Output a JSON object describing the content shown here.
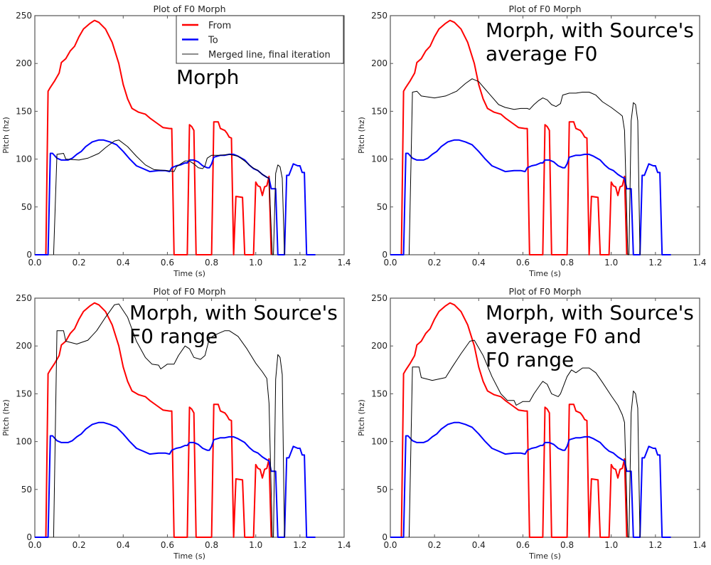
{
  "chart_data": [
    {
      "type": "line",
      "title": "Plot of F0 Morph",
      "xlabel": "Time (s)",
      "ylabel": "Pitch (hz)",
      "xlim": [
        0.0,
        1.4
      ],
      "ylim": [
        0,
        250
      ],
      "xticks": [
        "0.0",
        "0.2",
        "0.4",
        "0.6",
        "0.8",
        "1.0",
        "1.2",
        "1.4"
      ],
      "yticks": [
        "0",
        "50",
        "100",
        "150",
        "200",
        "250"
      ],
      "annotation": [
        "Morph"
      ],
      "legend": {
        "position": "top-right",
        "entries": [
          "From",
          "To",
          "Merged line, final iteration"
        ]
      },
      "merged_key": "merged_morph"
    },
    {
      "type": "line",
      "title": "Plot of F0 Morph",
      "xlabel": "Time (s)",
      "ylabel": "Pitch (hz)",
      "xlim": [
        0.0,
        1.4
      ],
      "ylim": [
        0,
        250
      ],
      "xticks": [
        "0.0",
        "0.2",
        "0.4",
        "0.6",
        "0.8",
        "1.0",
        "1.2",
        "1.4"
      ],
      "yticks": [
        "0",
        "50",
        "100",
        "150",
        "200",
        "250"
      ],
      "annotation": [
        "Morph, with Source's",
        "average F0"
      ],
      "legend": null,
      "merged_key": "merged_avg"
    },
    {
      "type": "line",
      "title": "Plot of F0 Morph",
      "xlabel": "Time (s)",
      "ylabel": "Pitch (hz)",
      "xlim": [
        0.0,
        1.4
      ],
      "ylim": [
        0,
        250
      ],
      "xticks": [
        "0.0",
        "0.2",
        "0.4",
        "0.6",
        "0.8",
        "1.0",
        "1.2",
        "1.4"
      ],
      "yticks": [
        "0",
        "50",
        "100",
        "150",
        "200",
        "250"
      ],
      "annotation": [
        "Morph, with Source's",
        "F0 range"
      ],
      "legend": null,
      "merged_key": "merged_range"
    },
    {
      "type": "line",
      "title": "Plot of F0 Morph",
      "xlabel": "Time (s)",
      "ylabel": "Pitch (hz)",
      "xlim": [
        0.0,
        1.4
      ],
      "ylim": [
        0,
        250
      ],
      "xticks": [
        "0.0",
        "0.2",
        "0.4",
        "0.6",
        "0.8",
        "1.0",
        "1.2",
        "1.4"
      ],
      "yticks": [
        "0",
        "50",
        "100",
        "150",
        "200",
        "250"
      ],
      "annotation": [
        "Morph, with Source's",
        "average F0 and",
        "F0 range"
      ],
      "legend": null,
      "merged_key": "merged_avg_range"
    }
  ],
  "series": {
    "from": {
      "name": "From",
      "color": "#ff0000",
      "points": [
        [
          0,
          0
        ],
        [
          0.05,
          0
        ],
        [
          0.06,
          171
        ],
        [
          0.07,
          175
        ],
        [
          0.09,
          182
        ],
        [
          0.11,
          190
        ],
        [
          0.12,
          201
        ],
        [
          0.14,
          205
        ],
        [
          0.16,
          213
        ],
        [
          0.18,
          218
        ],
        [
          0.2,
          228
        ],
        [
          0.22,
          236
        ],
        [
          0.25,
          242
        ],
        [
          0.27,
          245
        ],
        [
          0.29,
          243
        ],
        [
          0.32,
          236
        ],
        [
          0.35,
          222
        ],
        [
          0.38,
          200
        ],
        [
          0.4,
          178
        ],
        [
          0.42,
          163
        ],
        [
          0.44,
          153
        ],
        [
          0.47,
          149
        ],
        [
          0.5,
          147
        ],
        [
          0.52,
          143
        ],
        [
          0.55,
          138
        ],
        [
          0.58,
          133
        ],
        [
          0.61,
          132
        ],
        [
          0.62,
          132
        ],
        [
          0.63,
          0
        ],
        [
          0.69,
          0
        ],
        [
          0.7,
          136
        ],
        [
          0.71,
          134
        ],
        [
          0.72,
          130
        ],
        [
          0.73,
          0
        ],
        [
          0.8,
          0
        ],
        [
          0.81,
          139
        ],
        [
          0.83,
          139
        ],
        [
          0.84,
          132
        ],
        [
          0.86,
          130
        ],
        [
          0.87,
          127
        ],
        [
          0.88,
          123
        ],
        [
          0.89,
          122
        ],
        [
          0.9,
          0
        ],
        [
          0.91,
          61
        ],
        [
          0.94,
          60
        ],
        [
          0.95,
          0
        ],
        [
          0.99,
          0
        ],
        [
          1.0,
          76
        ],
        [
          1.01,
          72
        ],
        [
          1.02,
          71
        ],
        [
          1.03,
          62
        ],
        [
          1.04,
          71
        ],
        [
          1.05,
          72
        ],
        [
          1.06,
          82
        ],
        [
          1.07,
          0
        ]
      ]
    },
    "to": {
      "name": "To",
      "color": "#0000ff",
      "points": [
        [
          0,
          0
        ],
        [
          0.06,
          0
        ],
        [
          0.07,
          106
        ],
        [
          0.08,
          106
        ],
        [
          0.1,
          101
        ],
        [
          0.12,
          99
        ],
        [
          0.15,
          99
        ],
        [
          0.17,
          101
        ],
        [
          0.19,
          105
        ],
        [
          0.21,
          108
        ],
        [
          0.23,
          113
        ],
        [
          0.26,
          118
        ],
        [
          0.29,
          120
        ],
        [
          0.31,
          120
        ],
        [
          0.34,
          118
        ],
        [
          0.37,
          115
        ],
        [
          0.4,
          108
        ],
        [
          0.43,
          100
        ],
        [
          0.46,
          93
        ],
        [
          0.49,
          90
        ],
        [
          0.52,
          87
        ],
        [
          0.56,
          88
        ],
        [
          0.59,
          88
        ],
        [
          0.61,
          87
        ],
        [
          0.62,
          91
        ],
        [
          0.64,
          93
        ],
        [
          0.66,
          94
        ],
        [
          0.68,
          96
        ],
        [
          0.69,
          96
        ],
        [
          0.7,
          99
        ],
        [
          0.72,
          99
        ],
        [
          0.74,
          97
        ],
        [
          0.76,
          93
        ],
        [
          0.78,
          91
        ],
        [
          0.79,
          91
        ],
        [
          0.8,
          95
        ],
        [
          0.81,
          102
        ],
        [
          0.84,
          104
        ],
        [
          0.86,
          104
        ],
        [
          0.88,
          105
        ],
        [
          0.9,
          105
        ],
        [
          0.92,
          103
        ],
        [
          0.95,
          99
        ],
        [
          0.97,
          94
        ],
        [
          0.99,
          90
        ],
        [
          1.01,
          88
        ],
        [
          1.03,
          84
        ],
        [
          1.05,
          81
        ],
        [
          1.06,
          80
        ],
        [
          1.07,
          69
        ],
        [
          1.09,
          69
        ],
        [
          1.1,
          0
        ],
        [
          1.13,
          0
        ],
        [
          1.14,
          83
        ],
        [
          1.15,
          83
        ],
        [
          1.16,
          89
        ],
        [
          1.17,
          95
        ],
        [
          1.19,
          93
        ],
        [
          1.2,
          93
        ],
        [
          1.21,
          86
        ],
        [
          1.22,
          86
        ],
        [
          1.23,
          0
        ],
        [
          1.27,
          0
        ]
      ]
    },
    "merged_morph": {
      "name": "Merged line, final iteration",
      "color": "#000000",
      "points": [
        [
          0.085,
          0
        ],
        [
          0.1,
          105
        ],
        [
          0.13,
          106
        ],
        [
          0.14,
          100
        ],
        [
          0.2,
          99
        ],
        [
          0.24,
          101
        ],
        [
          0.29,
          106
        ],
        [
          0.32,
          112
        ],
        [
          0.36,
          119
        ],
        [
          0.38,
          120
        ],
        [
          0.42,
          113
        ],
        [
          0.46,
          103
        ],
        [
          0.5,
          94
        ],
        [
          0.54,
          89
        ],
        [
          0.6,
          88
        ],
        [
          0.63,
          87
        ],
        [
          0.64,
          92
        ],
        [
          0.66,
          95
        ],
        [
          0.68,
          98
        ],
        [
          0.7,
          98
        ],
        [
          0.72,
          95
        ],
        [
          0.74,
          91
        ],
        [
          0.76,
          90
        ],
        [
          0.77,
          93
        ],
        [
          0.78,
          101
        ],
        [
          0.8,
          104
        ],
        [
          0.84,
          104
        ],
        [
          0.88,
          105
        ],
        [
          0.92,
          103
        ],
        [
          0.95,
          98
        ],
        [
          0.98,
          92
        ],
        [
          1.01,
          88
        ],
        [
          1.03,
          84
        ],
        [
          1.05,
          81
        ],
        [
          1.06,
          80
        ],
        [
          1.075,
          0
        ],
        [
          1.08,
          0
        ],
        [
          1.09,
          85
        ],
        [
          1.1,
          94
        ],
        [
          1.11,
          92
        ],
        [
          1.12,
          80
        ],
        [
          1.13,
          0
        ]
      ]
    },
    "merged_avg": {
      "name": "Merged line, final iteration",
      "color": "#000000",
      "points": [
        [
          0.085,
          0
        ],
        [
          0.1,
          170
        ],
        [
          0.12,
          171
        ],
        [
          0.14,
          166
        ],
        [
          0.2,
          164
        ],
        [
          0.25,
          166
        ],
        [
          0.3,
          171
        ],
        [
          0.34,
          179
        ],
        [
          0.37,
          184
        ],
        [
          0.4,
          181
        ],
        [
          0.43,
          173
        ],
        [
          0.46,
          165
        ],
        [
          0.49,
          157
        ],
        [
          0.52,
          154
        ],
        [
          0.56,
          152
        ],
        [
          0.59,
          153
        ],
        [
          0.62,
          153
        ],
        [
          0.63,
          152
        ],
        [
          0.65,
          157
        ],
        [
          0.67,
          161
        ],
        [
          0.69,
          164
        ],
        [
          0.71,
          162
        ],
        [
          0.73,
          157
        ],
        [
          0.75,
          155
        ],
        [
          0.77,
          158
        ],
        [
          0.78,
          167
        ],
        [
          0.81,
          169
        ],
        [
          0.84,
          169
        ],
        [
          0.87,
          170
        ],
        [
          0.9,
          170
        ],
        [
          0.93,
          167
        ],
        [
          0.96,
          160
        ],
        [
          1.0,
          154
        ],
        [
          1.04,
          147
        ],
        [
          1.05,
          145
        ],
        [
          1.06,
          130
        ],
        [
          1.075,
          0
        ],
        [
          1.08,
          0
        ],
        [
          1.09,
          140
        ],
        [
          1.1,
          159
        ],
        [
          1.11,
          157
        ],
        [
          1.12,
          140
        ],
        [
          1.13,
          0
        ]
      ]
    },
    "merged_range": {
      "name": "Merged line, final iteration",
      "color": "#000000",
      "points": [
        [
          0.085,
          0
        ],
        [
          0.1,
          216
        ],
        [
          0.13,
          216
        ],
        [
          0.14,
          205
        ],
        [
          0.19,
          202
        ],
        [
          0.24,
          206
        ],
        [
          0.28,
          216
        ],
        [
          0.32,
          230
        ],
        [
          0.36,
          243
        ],
        [
          0.38,
          244
        ],
        [
          0.42,
          230
        ],
        [
          0.46,
          205
        ],
        [
          0.5,
          188
        ],
        [
          0.53,
          181
        ],
        [
          0.56,
          180
        ],
        [
          0.57,
          176
        ],
        [
          0.6,
          181
        ],
        [
          0.63,
          181
        ],
        [
          0.65,
          190
        ],
        [
          0.68,
          200
        ],
        [
          0.7,
          197
        ],
        [
          0.72,
          188
        ],
        [
          0.75,
          186
        ],
        [
          0.77,
          190
        ],
        [
          0.79,
          208
        ],
        [
          0.82,
          212
        ],
        [
          0.86,
          216
        ],
        [
          0.88,
          216
        ],
        [
          0.92,
          210
        ],
        [
          0.96,
          197
        ],
        [
          1.0,
          182
        ],
        [
          1.03,
          173
        ],
        [
          1.05,
          166
        ],
        [
          1.06,
          140
        ],
        [
          1.075,
          0
        ],
        [
          1.08,
          0
        ],
        [
          1.09,
          165
        ],
        [
          1.1,
          191
        ],
        [
          1.11,
          188
        ],
        [
          1.12,
          170
        ],
        [
          1.13,
          0
        ]
      ]
    },
    "merged_avg_range": {
      "name": "Merged line, final iteration",
      "color": "#000000",
      "points": [
        [
          0.085,
          0
        ],
        [
          0.1,
          178
        ],
        [
          0.13,
          178
        ],
        [
          0.14,
          167
        ],
        [
          0.19,
          164
        ],
        [
          0.25,
          167
        ],
        [
          0.28,
          178
        ],
        [
          0.32,
          192
        ],
        [
          0.36,
          205
        ],
        [
          0.38,
          206
        ],
        [
          0.42,
          190
        ],
        [
          0.46,
          168
        ],
        [
          0.5,
          150
        ],
        [
          0.53,
          143
        ],
        [
          0.56,
          143
        ],
        [
          0.57,
          138
        ],
        [
          0.6,
          142
        ],
        [
          0.63,
          142
        ],
        [
          0.65,
          150
        ],
        [
          0.68,
          160
        ],
        [
          0.69,
          163
        ],
        [
          0.71,
          160
        ],
        [
          0.73,
          150
        ],
        [
          0.76,
          147
        ],
        [
          0.77,
          150
        ],
        [
          0.8,
          168
        ],
        [
          0.82,
          175
        ],
        [
          0.84,
          172
        ],
        [
          0.87,
          177
        ],
        [
          0.9,
          177
        ],
        [
          0.93,
          172
        ],
        [
          0.96,
          162
        ],
        [
          1.0,
          148
        ],
        [
          1.03,
          138
        ],
        [
          1.05,
          128
        ],
        [
          1.06,
          120
        ],
        [
          1.075,
          0
        ],
        [
          1.08,
          0
        ],
        [
          1.09,
          130
        ],
        [
          1.1,
          153
        ],
        [
          1.11,
          150
        ],
        [
          1.12,
          135
        ],
        [
          1.13,
          0
        ]
      ]
    }
  }
}
